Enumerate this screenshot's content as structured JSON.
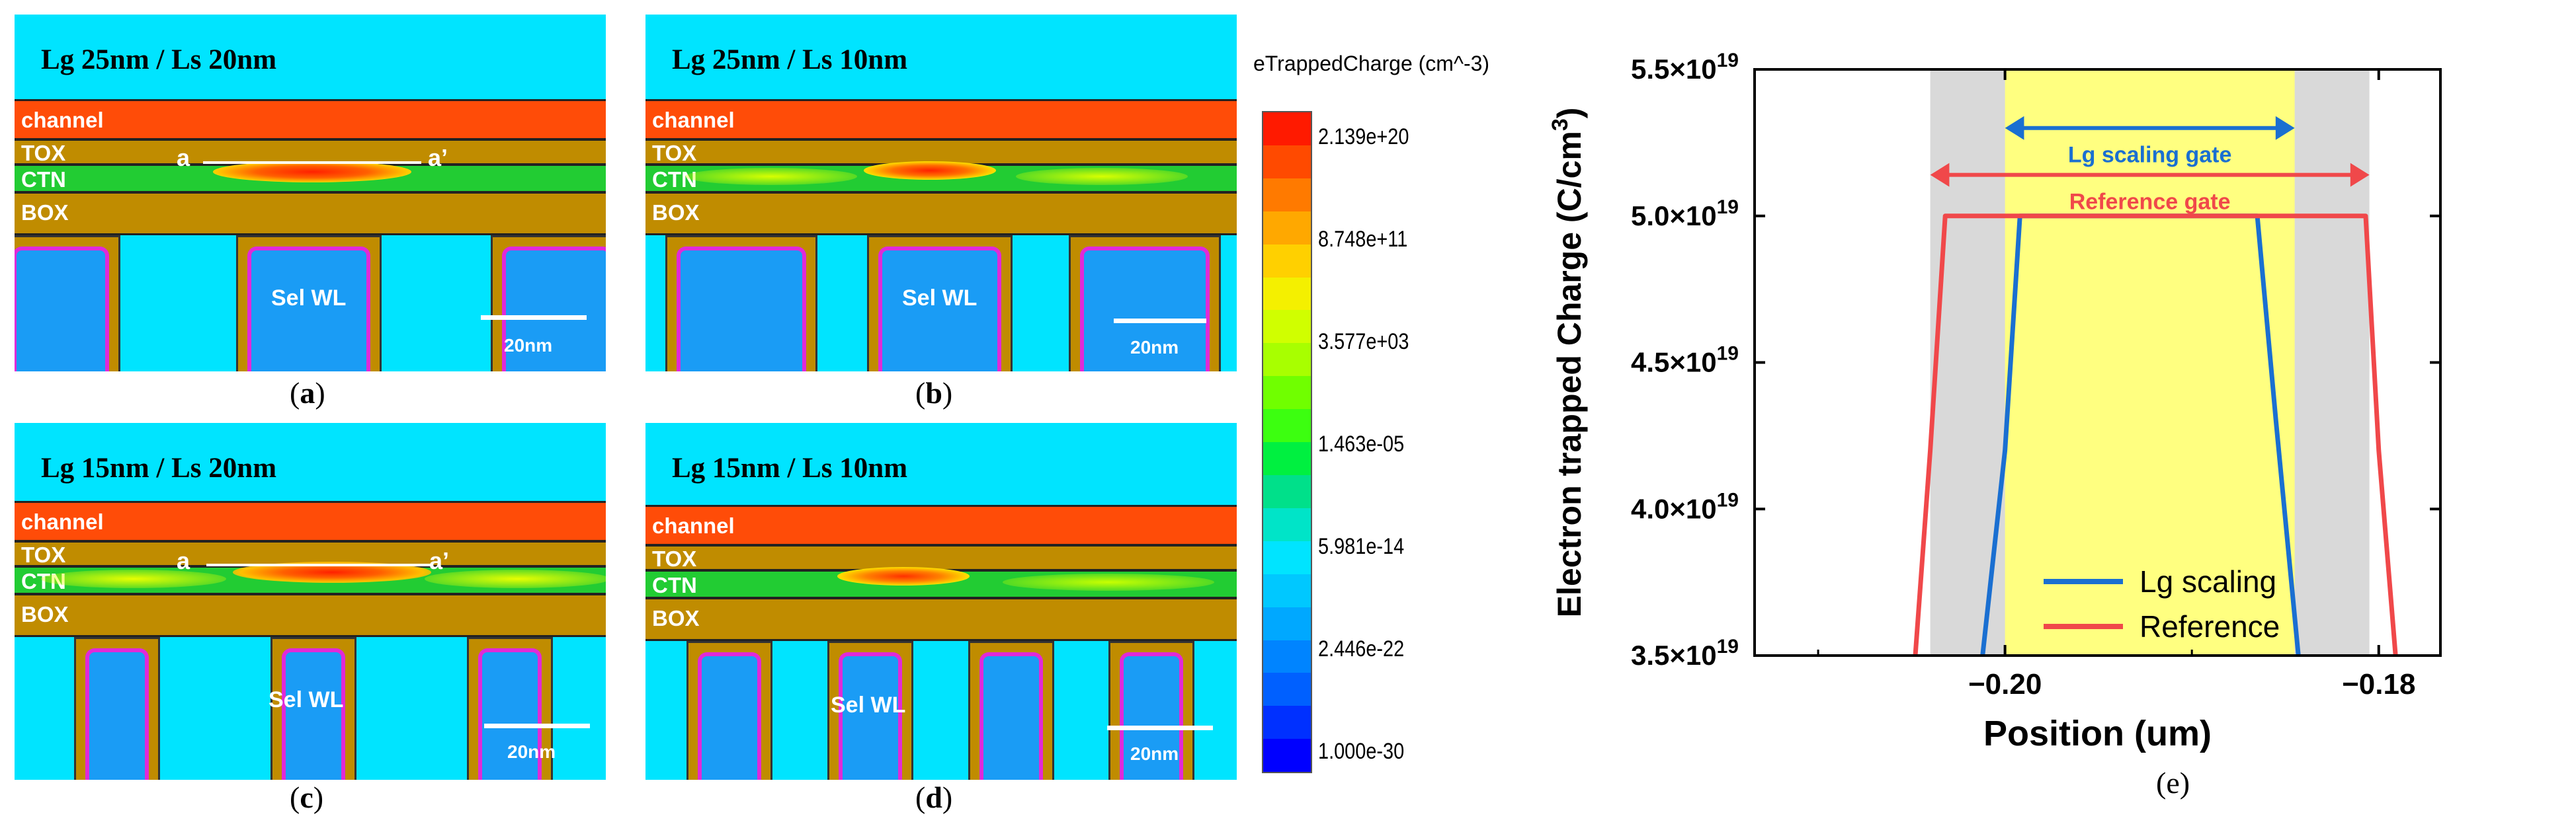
{
  "panels": {
    "a": {
      "title": "Lg 25nm / Ls 20nm",
      "caption": "a",
      "marker_start": "a",
      "marker_end": "a’"
    },
    "b": {
      "title": "Lg 25nm / Ls 10nm",
      "caption": "b"
    },
    "c": {
      "title": "Lg 15nm / Ls 20nm",
      "caption": "c",
      "marker_start": "a",
      "marker_end": "a’"
    },
    "d": {
      "title": "Lg 15nm / Ls 10nm",
      "caption": "d"
    }
  },
  "layers": {
    "channel": "channel",
    "tox": "TOX",
    "ctn": "CTN",
    "box": "BOX"
  },
  "sel_wl": "Sel WL",
  "scale_bar": "20nm",
  "colorbar": {
    "title": "eTrappedCharge (cm^-3)",
    "ticks": [
      "2.139e+20",
      "8.748e+11",
      "3.577e+03",
      "1.463e-05",
      "5.981e-14",
      "2.446e-22",
      "1.000e-30"
    ],
    "colors": [
      "#ff1a00",
      "#ff4a00",
      "#ff7a00",
      "#ffa800",
      "#ffd000",
      "#f4f000",
      "#d0ff00",
      "#a8ff00",
      "#70ff00",
      "#3cff10",
      "#00f040",
      "#00e08a",
      "#00e4c8",
      "#00e4ff",
      "#00c8ff",
      "#00a8ff",
      "#0084ff",
      "#0060ff",
      "#0030ff",
      "#0000ff"
    ]
  },
  "chart_data": {
    "type": "line",
    "title": "",
    "caption": "e",
    "xlabel": "Position (um)",
    "ylabel_main": "Electron trapped Charge (C/cm",
    "ylabel_sup": "3",
    "ylabel_end": ")",
    "xlim": [
      -0.2134,
      -0.1767
    ],
    "ylim": [
      3.5e+19,
      5.5e+19
    ],
    "x_ticks": [
      -0.2,
      -0.18
    ],
    "x_tick_labels": [
      "−0.20",
      "−0.18"
    ],
    "y_ticks": [
      3.5e+19,
      4e+19,
      4.5e+19,
      5e+19,
      5.5e+19
    ],
    "y_tick_labels": [
      {
        "mant": "3.5×10",
        "exp": "19"
      },
      {
        "mant": "4.0×10",
        "exp": "19"
      },
      {
        "mant": "4.5×10",
        "exp": "19"
      },
      {
        "mant": "5.0×10",
        "exp": "19"
      },
      {
        "mant": "5.5×10",
        "exp": "19"
      }
    ],
    "regions": [
      {
        "name": "reference-gate-region",
        "x0": -0.204,
        "x1": -0.1805,
        "color": "#d9d9d9"
      },
      {
        "name": "lg-scaling-gate-region",
        "x0": -0.2,
        "x1": -0.1845,
        "color": "#ffff80"
      }
    ],
    "series": [
      {
        "name": "Lg scaling",
        "color": "#1a6fd1",
        "x": [
          -0.2012,
          -0.2,
          -0.1992,
          -0.1865,
          -0.1855,
          -0.1843
        ],
        "y": [
          3.5e+19,
          4.2e+19,
          5e+19,
          5e+19,
          4.3e+19,
          3.5e+19
        ]
      },
      {
        "name": "Reference",
        "color": "#f0484a",
        "x": [
          -0.2048,
          -0.204,
          -0.2032,
          -0.1807,
          -0.18,
          -0.1791
        ],
        "y": [
          3.5e+19,
          4.2e+19,
          5e+19,
          5e+19,
          4.2e+19,
          3.5e+19
        ]
      }
    ],
    "annotations": [
      {
        "text": "Lg scaling gate",
        "x0": -0.2,
        "x1": -0.1845,
        "y": 5.3e+19,
        "color": "#1a6fd1"
      },
      {
        "text": "Reference gate",
        "x0": -0.204,
        "x1": -0.1805,
        "y": 5.14e+19,
        "color": "#f0484a"
      }
    ],
    "legend_position": "bottom-right"
  }
}
